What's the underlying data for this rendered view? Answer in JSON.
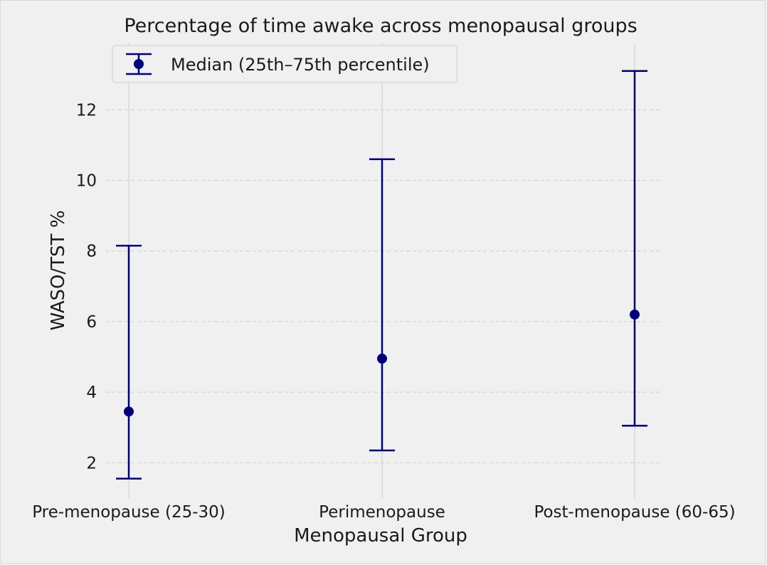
{
  "chart_data": {
    "type": "errorbar",
    "title": "Percentage of time awake across menopausal groups",
    "xlabel": "Menopausal Group",
    "ylabel": "WASO/TST %",
    "categories": [
      "Pre-menopause (25-30)",
      "Perimenopause",
      "Post-menopause (60-65)"
    ],
    "series": [
      {
        "name": "Median (25th–75th percentile)",
        "median": [
          3.45,
          4.95,
          6.2
        ],
        "q1": [
          1.55,
          2.35,
          3.05
        ],
        "q3": [
          8.15,
          10.6,
          13.1
        ]
      }
    ],
    "ylim": [
      1.2,
      13.6
    ],
    "yticks": [
      2,
      4,
      6,
      8,
      10,
      12
    ],
    "grid": true,
    "legend_position": "top-left",
    "colors": {
      "series": "#00007f",
      "grid": "#d2d2d2",
      "background": "#f0f0f0"
    }
  }
}
